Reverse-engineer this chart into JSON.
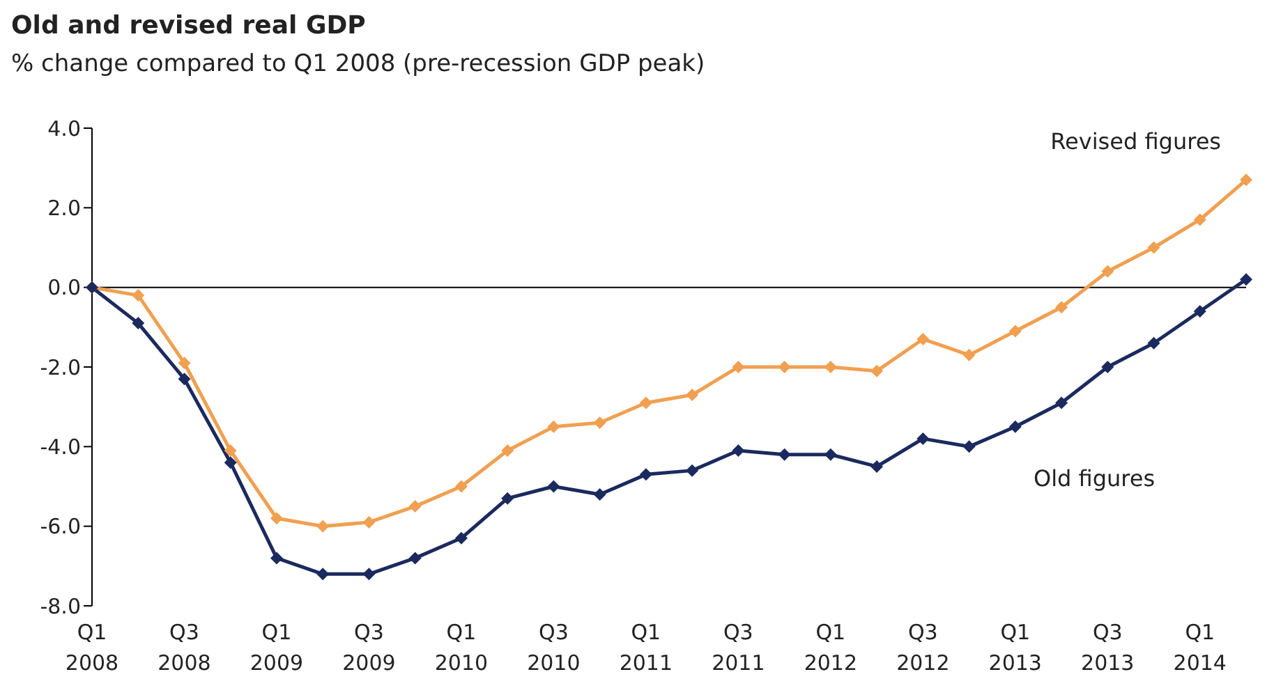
{
  "chart_data": {
    "type": "line",
    "title": "Old and revised real GDP",
    "subtitle": "% change compared to Q1 2008 (pre-recession GDP peak)",
    "categories": [
      "Q1 2008",
      null,
      "Q3 2008",
      null,
      "Q1 2009",
      null,
      "Q3 2009",
      null,
      "Q1 2010",
      null,
      "Q3 2010",
      null,
      "Q1 2011",
      null,
      "Q3 2011",
      null,
      "Q1 2012",
      null,
      "Q3 2012",
      null,
      "Q1 2013",
      null,
      "Q3 2013",
      null,
      "Q1 2014",
      null
    ],
    "series": [
      {
        "name": "Revised figures",
        "color": "#f0a050",
        "values": [
          0,
          -0.2,
          -1.9,
          -4.1,
          -5.8,
          -6.0,
          -5.9,
          -5.5,
          -5.0,
          -4.1,
          -3.5,
          -3.4,
          -2.9,
          -2.7,
          -2.0,
          -2.0,
          -2.0,
          -2.1,
          -1.3,
          -1.7,
          -1.1,
          -0.5,
          0.4,
          1.0,
          1.7,
          2.7
        ]
      },
      {
        "name": "Old figures",
        "color": "#1b2a5e",
        "values": [
          0,
          -0.9,
          -2.3,
          -4.4,
          -6.8,
          -7.2,
          -7.2,
          -6.8,
          -6.3,
          -5.3,
          -5.0,
          -5.2,
          -4.7,
          -4.6,
          -4.1,
          -4.2,
          -4.2,
          -4.5,
          -3.8,
          -4.0,
          -3.5,
          -2.9,
          -2.0,
          -1.4,
          -0.6,
          0.2
        ]
      }
    ],
    "ylim": [
      -8,
      4
    ],
    "yticks": [
      {
        "value": -8,
        "label": "-8.0"
      },
      {
        "value": -6,
        "label": "-6.0"
      },
      {
        "value": -4,
        "label": "-4.0"
      },
      {
        "value": -2,
        "label": "-2.0"
      },
      {
        "value": 0,
        "label": "0.0"
      },
      {
        "value": 2,
        "label": "2.0"
      },
      {
        "value": 4,
        "label": "4.0"
      }
    ],
    "ref_lines": [
      {
        "axis": "y",
        "value": 0,
        "color": "#000000"
      }
    ],
    "grid": false,
    "legend": false,
    "marker": "diamond",
    "line_style": "solid"
  }
}
